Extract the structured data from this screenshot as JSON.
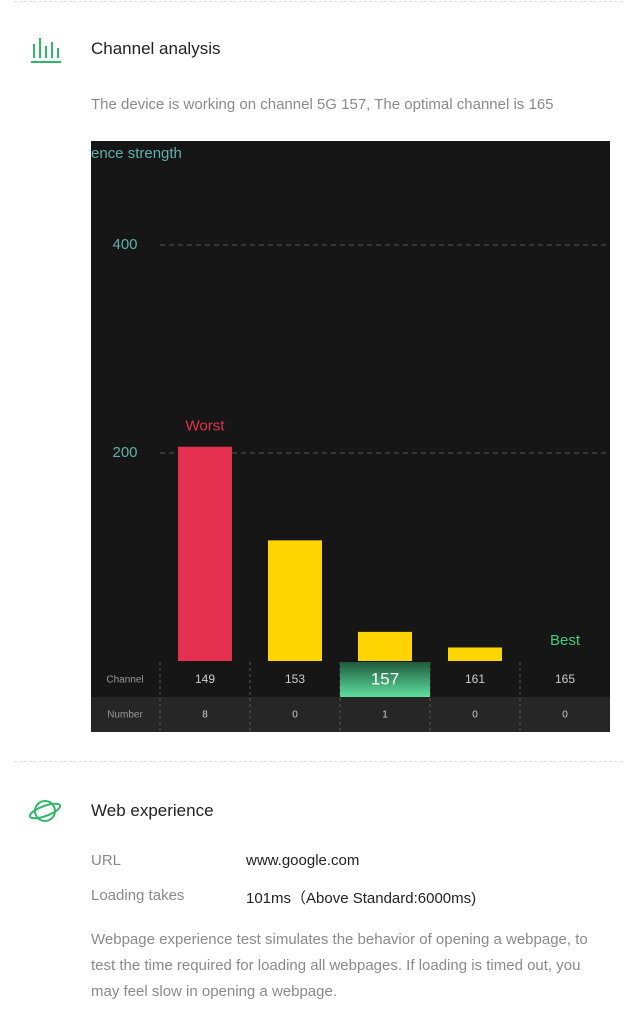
{
  "channel_section": {
    "title": "Channel analysis",
    "description": "The device is working on channel 5G 157, The optimal channel is 165"
  },
  "chart_data": {
    "type": "bar",
    "y_label": "ence strength",
    "categories": [
      "149",
      "153",
      "157",
      "161",
      "165"
    ],
    "values": [
      206,
      116,
      28,
      13,
      0
    ],
    "colors": [
      "#e5304f",
      "#ffd500",
      "#ffd500",
      "#ffd500",
      "#ffd500"
    ],
    "ylim": [
      0,
      480
    ],
    "yticks": [
      200,
      400
    ],
    "grid": true,
    "current_channel": "157",
    "annotations": [
      {
        "text": "Worst",
        "x": "149",
        "color": "#e5304f"
      },
      {
        "text": "Best",
        "x": "165",
        "color": "#3ecf7a"
      }
    ],
    "row_labels": [
      "Channel",
      "Number"
    ],
    "numbers": [
      8,
      0,
      1,
      0,
      0
    ]
  },
  "web_section": {
    "title": "Web experience",
    "rows": [
      [
        "URL",
        "www.google.com"
      ],
      [
        "Loading takes",
        "101ms（Above Standard:6000ms)"
      ]
    ],
    "note": "Webpage experience test simulates the behavior of opening a webpage, to test the time required for loading all webpages. If loading is timed out, you may feel slow in opening a webpage."
  }
}
